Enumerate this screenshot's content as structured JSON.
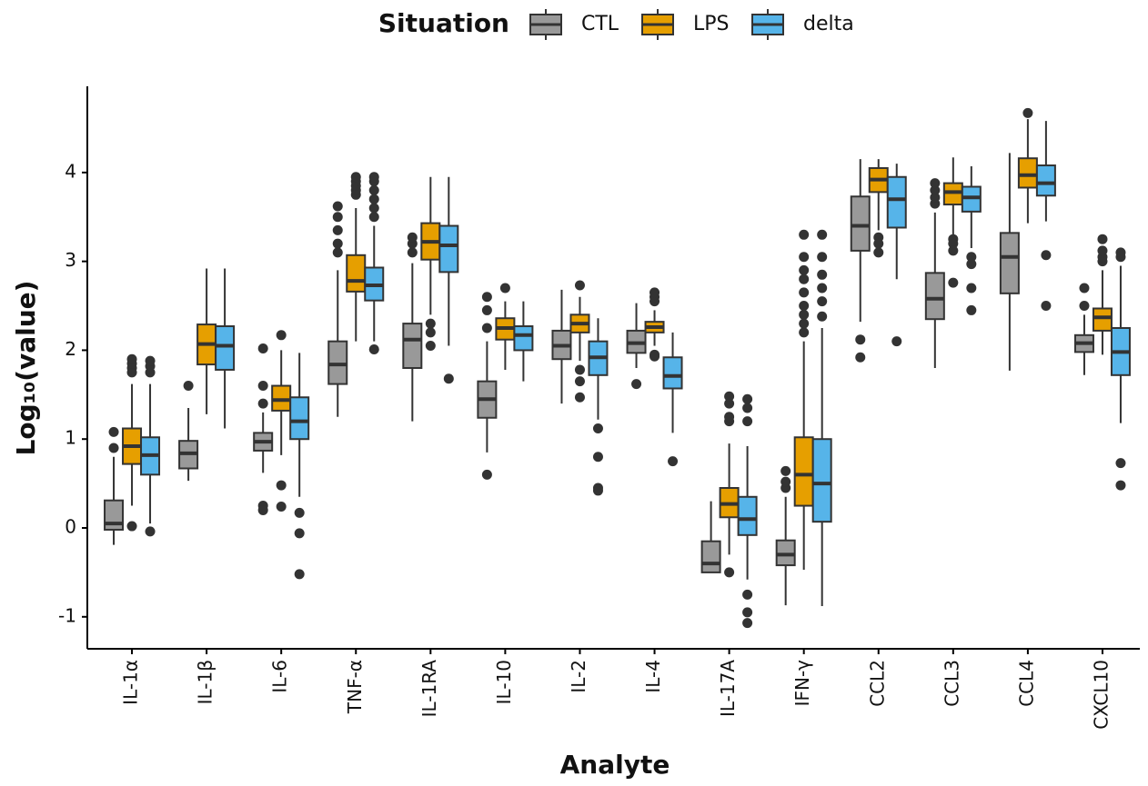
{
  "chart_data": {
    "type": "boxplot",
    "x_label": "Analyte",
    "y_label": "Log₁₀(value)",
    "legend_title": "Situation",
    "legend_position": "top",
    "categories": [
      "IL-1α",
      "IL-1β",
      "IL-6",
      "TNF-α",
      "IL-1RA",
      "IL-10",
      "IL-2",
      "IL-4",
      "IL-17A",
      "IFN-γ",
      "CCL2",
      "CCL3",
      "CCL4",
      "CXCL10"
    ],
    "ylim": [
      -1.36,
      4.97
    ],
    "yticks": [
      -1,
      0,
      1,
      2,
      3,
      4
    ],
    "grid": false,
    "series": [
      {
        "name": "CTL",
        "color": "#999999",
        "boxes": [
          {
            "low": -0.19,
            "q1": -0.02,
            "median": 0.05,
            "q3": 0.31,
            "high": 0.8,
            "outliers": [
              1.08,
              0.9
            ]
          },
          {
            "low": 0.53,
            "q1": 0.67,
            "median": 0.84,
            "q3": 0.98,
            "high": 1.35,
            "outliers": [
              1.6
            ]
          },
          {
            "low": 0.62,
            "q1": 0.87,
            "median": 0.97,
            "q3": 1.07,
            "high": 1.3,
            "outliers": [
              1.4,
              1.6,
              2.02,
              0.25,
              0.2
            ]
          },
          {
            "low": 1.25,
            "q1": 1.62,
            "median": 1.84,
            "q3": 2.1,
            "high": 2.9,
            "outliers": [
              3.1,
              3.2,
              3.35,
              3.5,
              3.62
            ]
          },
          {
            "low": 1.2,
            "q1": 1.8,
            "median": 2.12,
            "q3": 2.3,
            "high": 2.98,
            "outliers": [
              3.1,
              3.2,
              3.27
            ]
          },
          {
            "low": 0.85,
            "q1": 1.24,
            "median": 1.45,
            "q3": 1.65,
            "high": 2.1,
            "outliers": [
              2.25,
              2.45,
              2.6,
              0.6
            ]
          },
          {
            "low": 1.4,
            "q1": 1.9,
            "median": 2.05,
            "q3": 2.22,
            "high": 2.68,
            "outliers": []
          },
          {
            "low": 1.8,
            "q1": 1.97,
            "median": 2.08,
            "q3": 2.22,
            "high": 2.53,
            "outliers": [
              1.62
            ]
          },
          {
            "low": -0.5,
            "q1": -0.5,
            "median": -0.4,
            "q3": -0.15,
            "high": 0.3,
            "outliers": []
          },
          {
            "low": -0.87,
            "q1": -0.42,
            "median": -0.3,
            "q3": -0.14,
            "high": 0.35,
            "outliers": [
              0.45,
              0.52,
              0.64
            ]
          },
          {
            "low": 2.32,
            "q1": 3.12,
            "median": 3.4,
            "q3": 3.73,
            "high": 4.15,
            "outliers": [
              2.12,
              1.92
            ]
          },
          {
            "low": 1.8,
            "q1": 2.35,
            "median": 2.58,
            "q3": 2.87,
            "high": 3.55,
            "outliers": [
              3.65,
              3.72,
              3.8,
              3.88
            ]
          },
          {
            "low": 1.77,
            "q1": 2.64,
            "median": 3.05,
            "q3": 3.32,
            "high": 4.22,
            "outliers": []
          },
          {
            "low": 1.72,
            "q1": 1.98,
            "median": 2.08,
            "q3": 2.17,
            "high": 2.4,
            "outliers": [
              2.5,
              2.7
            ]
          }
        ]
      },
      {
        "name": "LPS",
        "color": "#E69F00",
        "boxes": [
          {
            "low": 0.25,
            "q1": 0.72,
            "median": 0.92,
            "q3": 1.12,
            "high": 1.62,
            "outliers": [
              1.75,
              1.8,
              1.85,
              1.9,
              0.02
            ]
          },
          {
            "low": 1.28,
            "q1": 1.84,
            "median": 2.07,
            "q3": 2.29,
            "high": 2.92,
            "outliers": []
          },
          {
            "low": 0.82,
            "q1": 1.32,
            "median": 1.44,
            "q3": 1.6,
            "high": 2.0,
            "outliers": [
              2.17,
              0.48,
              0.24
            ]
          },
          {
            "low": 2.1,
            "q1": 2.66,
            "median": 2.78,
            "q3": 3.07,
            "high": 3.6,
            "outliers": [
              3.75,
              3.8,
              3.85,
              3.9,
              3.95
            ]
          },
          {
            "low": 2.4,
            "q1": 3.02,
            "median": 3.22,
            "q3": 3.43,
            "high": 3.95,
            "outliers": [
              2.3,
              2.2,
              2.05
            ]
          },
          {
            "low": 1.78,
            "q1": 2.12,
            "median": 2.25,
            "q3": 2.36,
            "high": 2.55,
            "outliers": [
              2.7
            ]
          },
          {
            "low": 1.88,
            "q1": 2.2,
            "median": 2.3,
            "q3": 2.4,
            "high": 2.6,
            "outliers": [
              2.73,
              1.78,
              1.65,
              1.47
            ]
          },
          {
            "low": 2.05,
            "q1": 2.2,
            "median": 2.26,
            "q3": 2.32,
            "high": 2.45,
            "outliers": [
              2.55,
              2.6,
              2.65,
              1.95,
              1.93
            ]
          },
          {
            "low": -0.3,
            "q1": 0.12,
            "median": 0.27,
            "q3": 0.45,
            "high": 0.95,
            "outliers": [
              1.2,
              1.25,
              1.4,
              1.48,
              -0.5
            ]
          },
          {
            "low": -0.47,
            "q1": 0.25,
            "median": 0.6,
            "q3": 1.02,
            "high": 2.1,
            "outliers": [
              2.2,
              2.3,
              2.4,
              2.5,
              2.65,
              2.8,
              2.9,
              3.05,
              3.3
            ]
          },
          {
            "low": 3.35,
            "q1": 3.78,
            "median": 3.92,
            "q3": 4.05,
            "high": 4.15,
            "outliers": [
              3.27,
              3.2,
              3.1
            ]
          },
          {
            "low": 3.3,
            "q1": 3.64,
            "median": 3.78,
            "q3": 3.88,
            "high": 4.17,
            "outliers": [
              3.25,
              3.2,
              3.12,
              2.76
            ]
          },
          {
            "low": 3.43,
            "q1": 3.83,
            "median": 3.97,
            "q3": 4.16,
            "high": 4.6,
            "outliers": [
              4.67
            ]
          },
          {
            "low": 1.95,
            "q1": 2.22,
            "median": 2.37,
            "q3": 2.47,
            "high": 2.9,
            "outliers": [
              3.0,
              3.05,
              3.12,
              3.25
            ]
          }
        ]
      },
      {
        "name": "delta",
        "color": "#56B4E9",
        "boxes": [
          {
            "low": 0.05,
            "q1": 0.6,
            "median": 0.82,
            "q3": 1.02,
            "high": 1.62,
            "outliers": [
              1.75,
              1.82,
              1.88,
              -0.04
            ]
          },
          {
            "low": 1.12,
            "q1": 1.78,
            "median": 2.05,
            "q3": 2.27,
            "high": 2.92,
            "outliers": []
          },
          {
            "low": 0.35,
            "q1": 1.0,
            "median": 1.2,
            "q3": 1.47,
            "high": 1.97,
            "outliers": [
              0.17,
              -0.06,
              -0.52
            ]
          },
          {
            "low": 2.1,
            "q1": 2.56,
            "median": 2.73,
            "q3": 2.93,
            "high": 3.4,
            "outliers": [
              3.5,
              3.6,
              3.7,
              3.8,
              3.9,
              3.95,
              2.01
            ]
          },
          {
            "low": 2.05,
            "q1": 2.88,
            "median": 3.18,
            "q3": 3.4,
            "high": 3.95,
            "outliers": [
              1.68
            ]
          },
          {
            "low": 1.65,
            "q1": 2.0,
            "median": 2.17,
            "q3": 2.27,
            "high": 2.55,
            "outliers": []
          },
          {
            "low": 1.22,
            "q1": 1.72,
            "median": 1.92,
            "q3": 2.1,
            "high": 2.36,
            "outliers": [
              1.12,
              0.8,
              0.45,
              0.42
            ]
          },
          {
            "low": 1.07,
            "q1": 1.57,
            "median": 1.71,
            "q3": 1.92,
            "high": 2.2,
            "outliers": [
              0.75
            ]
          },
          {
            "low": -0.58,
            "q1": -0.08,
            "median": 0.1,
            "q3": 0.35,
            "high": 0.92,
            "outliers": [
              1.2,
              1.35,
              1.45,
              -0.75,
              -0.95,
              -1.07
            ]
          },
          {
            "low": -0.88,
            "q1": 0.07,
            "median": 0.5,
            "q3": 1.0,
            "high": 2.25,
            "outliers": [
              2.38,
              2.55,
              2.7,
              2.85,
              3.05,
              3.3
            ]
          },
          {
            "low": 2.8,
            "q1": 3.38,
            "median": 3.7,
            "q3": 3.95,
            "high": 4.1,
            "outliers": [
              2.1
            ]
          },
          {
            "low": 3.15,
            "q1": 3.56,
            "median": 3.72,
            "q3": 3.84,
            "high": 4.07,
            "outliers": [
              3.05,
              2.97,
              2.7,
              2.45
            ]
          },
          {
            "low": 3.45,
            "q1": 3.74,
            "median": 3.88,
            "q3": 4.08,
            "high": 4.58,
            "outliers": [
              3.07,
              2.5
            ]
          },
          {
            "low": 1.18,
            "q1": 1.72,
            "median": 1.98,
            "q3": 2.25,
            "high": 2.95,
            "outliers": [
              3.05,
              3.1,
              0.73,
              0.48
            ]
          }
        ]
      }
    ]
  }
}
